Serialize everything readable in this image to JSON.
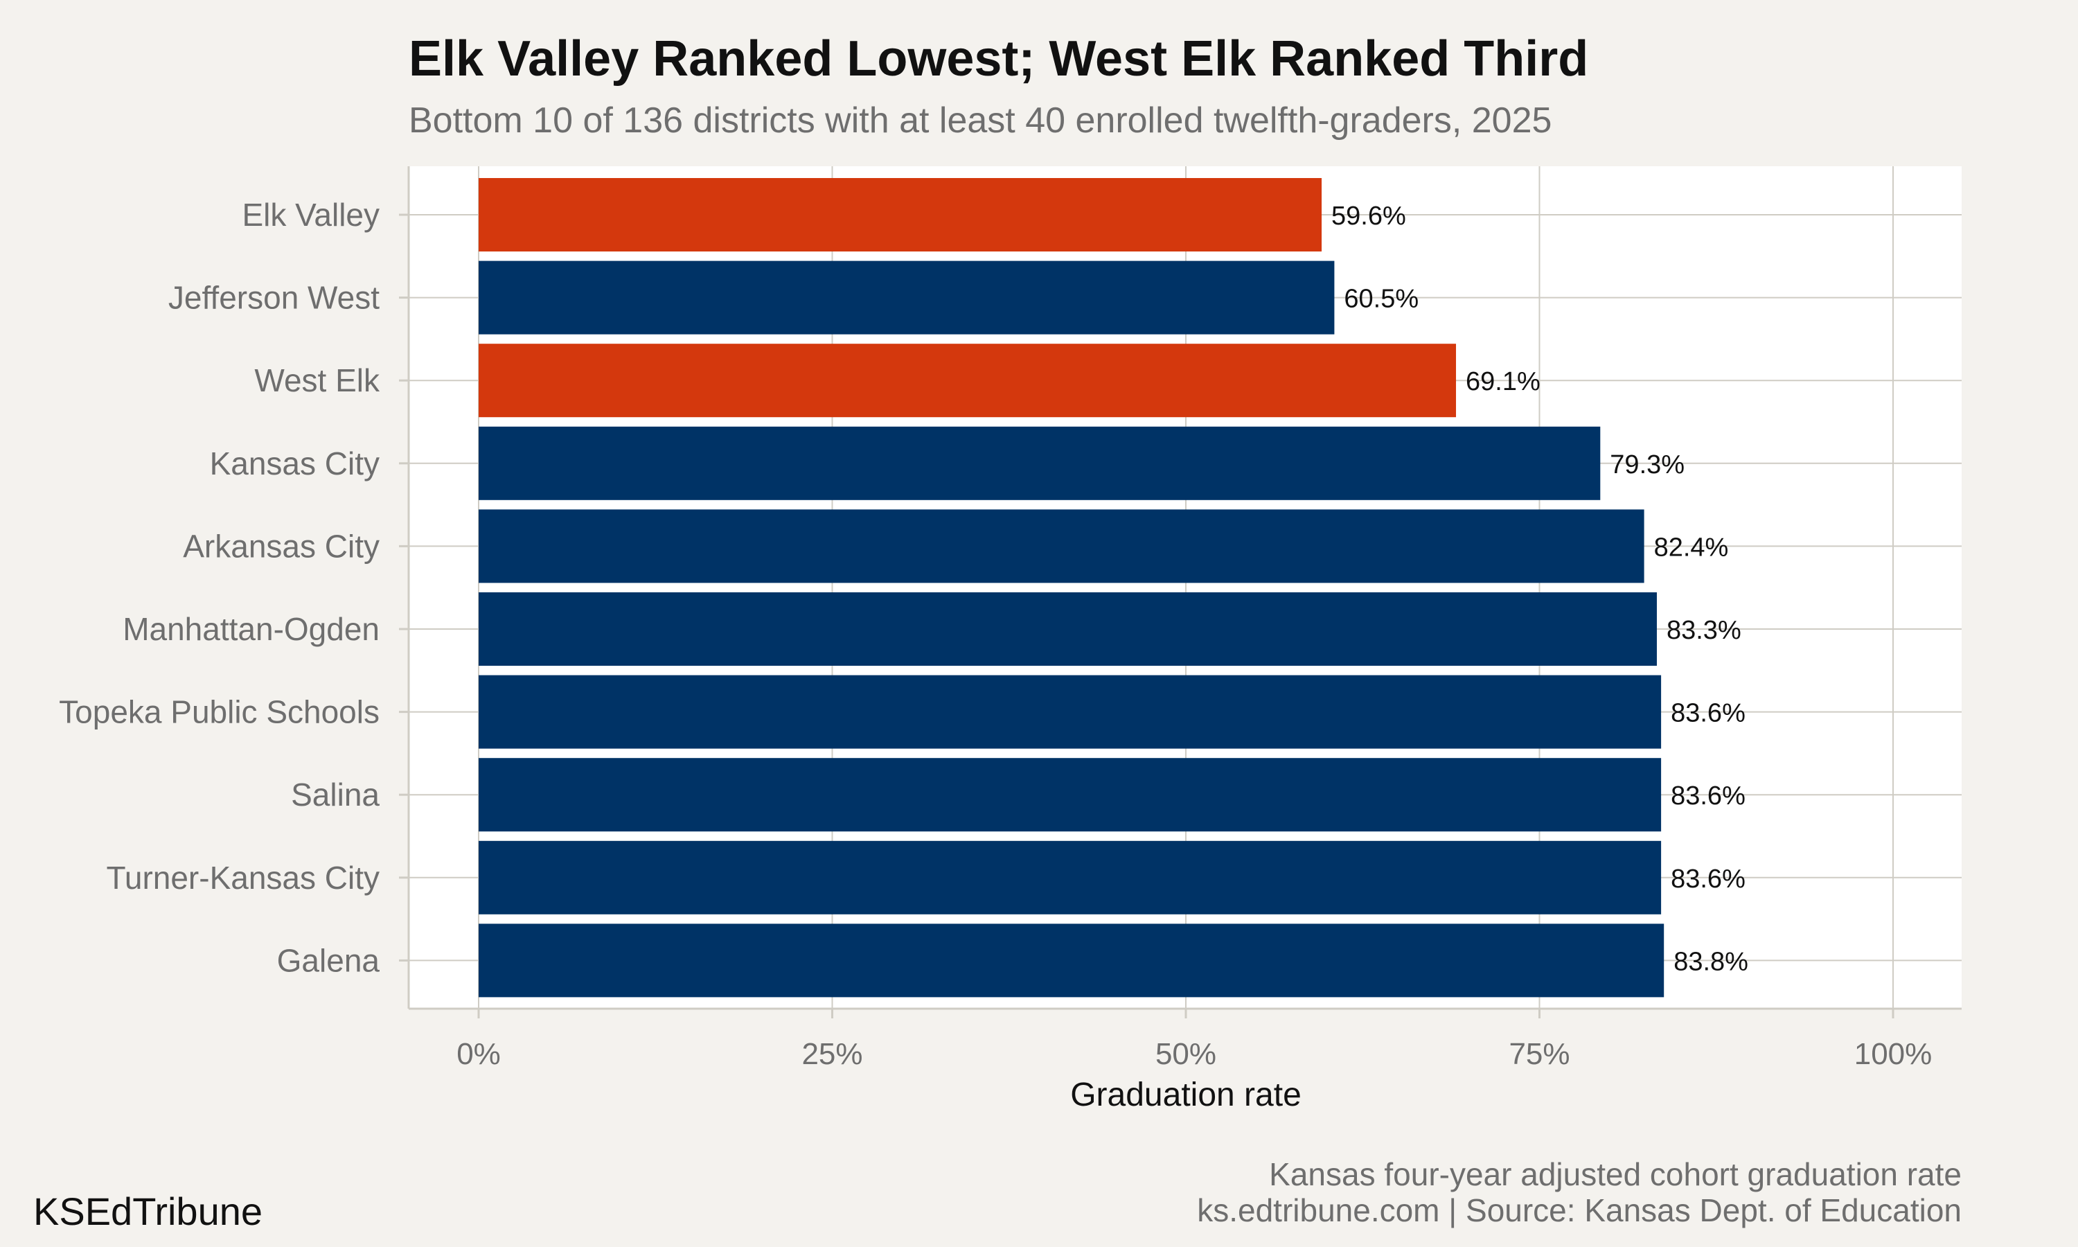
{
  "header": {
    "title": "Elk Valley Ranked Lowest; West Elk Ranked Third",
    "subtitle": "Bottom 10 of 136 districts with at least 40 enrolled twelfth-graders, 2025"
  },
  "footer": {
    "brand": "KSEdTribune",
    "note": "Kansas four-year adjusted cohort graduation rate",
    "source": "ks.edtribune.com | Source: Kansas Dept. of Education"
  },
  "colors": {
    "background": "#f4f2ee",
    "panel": "#ffffff",
    "highlight": "#d4380d",
    "default": "#003366",
    "grid": "#cfccc4"
  },
  "chart_data": {
    "type": "bar",
    "orientation": "horizontal",
    "xlabel": "Graduation rate",
    "ylabel": "",
    "xlim": [
      0,
      100
    ],
    "x_ticks": [
      0,
      25,
      50,
      75,
      100
    ],
    "x_tick_labels": [
      "0%",
      "25%",
      "50%",
      "75%",
      "100%"
    ],
    "grid": true,
    "categories": [
      "Elk Valley",
      "Jefferson West",
      "West Elk",
      "Kansas City",
      "Arkansas City",
      "Manhattan-Ogden",
      "Topeka Public Schools",
      "Salina",
      "Turner-Kansas City",
      "Galena"
    ],
    "values": [
      59.6,
      60.5,
      69.1,
      79.3,
      82.4,
      83.3,
      83.6,
      83.6,
      83.6,
      83.8
    ],
    "value_labels": [
      "59.6%",
      "60.5%",
      "69.1%",
      "79.3%",
      "82.4%",
      "83.3%",
      "83.6%",
      "83.6%",
      "83.6%",
      "83.8%"
    ],
    "highlighted": [
      "Elk Valley",
      "West Elk"
    ]
  }
}
